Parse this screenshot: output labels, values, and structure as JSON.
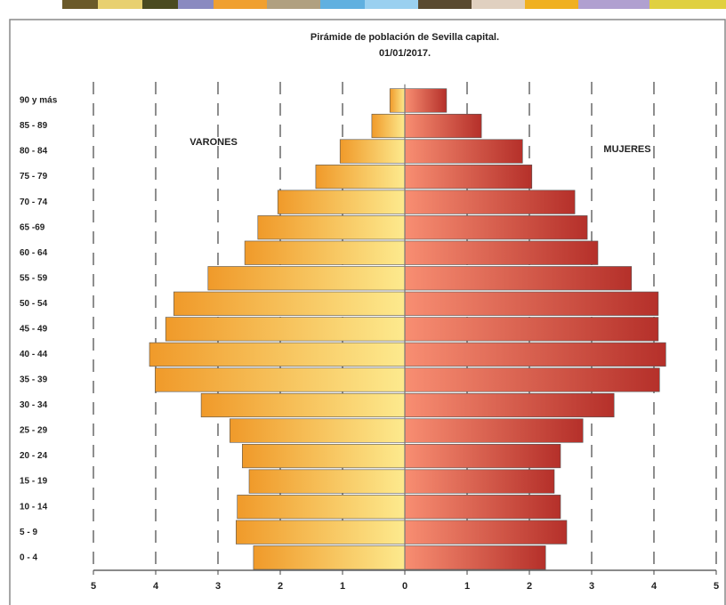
{
  "chart_data": {
    "type": "pyramid",
    "title": "Pirámide de población de Sevilla capital.",
    "subtitle": "01/01/2017.",
    "categories": [
      "90 y más",
      "85 - 89",
      "80 - 84",
      "75 - 79",
      "70 - 74",
      "65 -69",
      "60 - 64",
      "55 - 59",
      "50 - 54",
      "45 - 49",
      "40 - 44",
      "35 - 39",
      "30 - 34",
      "25 - 29",
      "20 - 24",
      "15 - 19",
      "10 - 14",
      "5 - 9",
      "0 - 4"
    ],
    "series": [
      {
        "name": "VARONES",
        "side": "left",
        "color": "#f09a2a",
        "values": [
          0.24,
          0.53,
          1.04,
          1.43,
          2.04,
          2.36,
          2.57,
          3.16,
          3.71,
          3.84,
          4.1,
          4.01,
          3.27,
          2.81,
          2.61,
          2.5,
          2.69,
          2.71,
          2.43
        ]
      },
      {
        "name": "MUJERES",
        "side": "right",
        "color": "#b5302a",
        "values": [
          0.67,
          1.23,
          1.89,
          2.04,
          2.73,
          2.93,
          3.1,
          3.64,
          4.07,
          4.07,
          4.19,
          4.09,
          3.36,
          2.86,
          2.5,
          2.4,
          2.5,
          2.6,
          2.26
        ]
      }
    ],
    "xlim": [
      0,
      5
    ],
    "xticks": [
      0,
      1,
      2,
      3,
      4,
      5
    ],
    "grid": true
  }
}
